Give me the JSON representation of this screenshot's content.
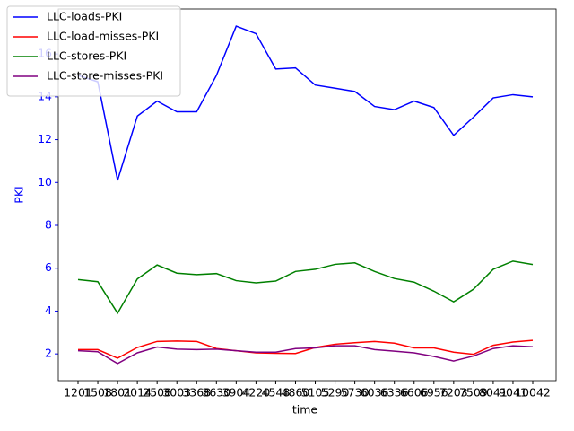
{
  "chart_data": {
    "type": "line",
    "xlabel": "time",
    "ylabel": "PKI",
    "categories": [
      "1201",
      "1508",
      "1801",
      "2014",
      "2508",
      "3003",
      "3368",
      "3630",
      "3904",
      "4220",
      "4548",
      "4860",
      "5105",
      "5290",
      "5730",
      "6036",
      "6336",
      "6606",
      "6956",
      "7203",
      "7509",
      "8041",
      "9041",
      "10042"
    ],
    "series": [
      {
        "name": "LLC-loads-PKI",
        "color": "#0000ff",
        "values": [
          15.0,
          14.7,
          10.1,
          13.1,
          13.8,
          13.3,
          13.3,
          15.0,
          17.3,
          16.95,
          15.3,
          15.35,
          14.55,
          14.4,
          14.25,
          13.55,
          13.4,
          13.8,
          13.5,
          12.2,
          13.05,
          13.95,
          14.1,
          14.0
        ]
      },
      {
        "name": "LLC-load-misses-PKI",
        "color": "#ff0000",
        "values": [
          2.2,
          2.2,
          1.8,
          2.3,
          2.58,
          2.6,
          2.58,
          2.25,
          2.15,
          2.05,
          2.03,
          2.02,
          2.3,
          2.45,
          2.52,
          2.58,
          2.5,
          2.28,
          2.28,
          2.08,
          1.98,
          2.4,
          2.55,
          2.63
        ]
      },
      {
        "name": "LLC-stores-PKI",
        "color": "#008000",
        "values": [
          5.47,
          5.37,
          3.9,
          5.5,
          6.15,
          5.77,
          5.7,
          5.75,
          5.42,
          5.32,
          5.4,
          5.85,
          5.95,
          6.18,
          6.25,
          5.85,
          5.52,
          5.35,
          4.93,
          4.43,
          5.02,
          5.95,
          6.33,
          6.17
        ]
      },
      {
        "name": "LLC-store-misses-PKI",
        "color": "#800080",
        "values": [
          2.15,
          2.1,
          1.55,
          2.05,
          2.32,
          2.22,
          2.2,
          2.22,
          2.15,
          2.08,
          2.08,
          2.25,
          2.28,
          2.38,
          2.38,
          2.2,
          2.13,
          2.05,
          1.88,
          1.67,
          1.9,
          2.25,
          2.38,
          2.33
        ]
      }
    ],
    "ylim": [
      0.75,
      18.1
    ],
    "yticks": [
      2,
      4,
      6,
      8,
      10,
      12,
      14,
      16
    ],
    "axis_color": "#0000ff",
    "legend": "upper left"
  }
}
